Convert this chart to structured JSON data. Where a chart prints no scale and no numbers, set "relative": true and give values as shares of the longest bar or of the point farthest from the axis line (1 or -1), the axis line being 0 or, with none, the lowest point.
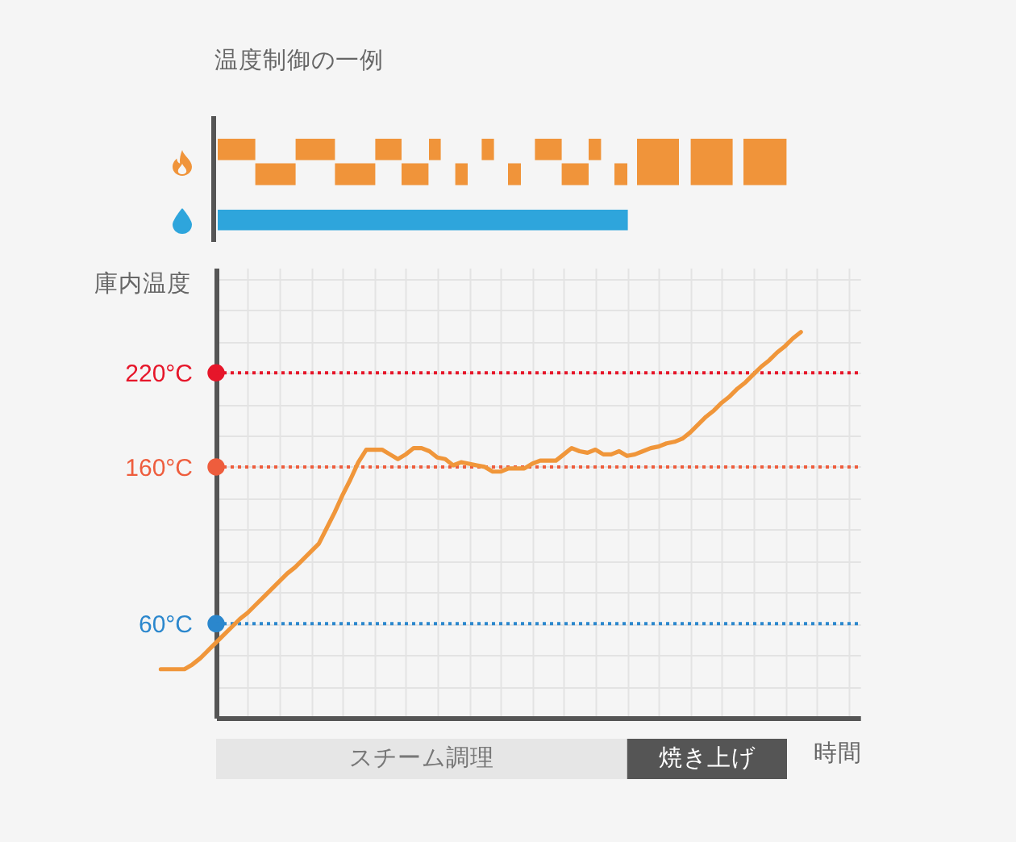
{
  "chart_data": [
    {
      "type": "other",
      "title": "温度制御の一例"
    },
    {
      "type": "line",
      "ylabel": "庫内温度",
      "xlabel": "時間",
      "categories": [
        null,
        null,
        null,
        null,
        null,
        null,
        null,
        null,
        null,
        null,
        null,
        null,
        null,
        null,
        null,
        null,
        null,
        null,
        null,
        null,
        null,
        null,
        null,
        null,
        null,
        null,
        null,
        null,
        null,
        null,
        null,
        null,
        null,
        null,
        null,
        null,
        null,
        null,
        null,
        null,
        null,
        null,
        null,
        null,
        null,
        null,
        null,
        null,
        null,
        null,
        null,
        null,
        null,
        null,
        null,
        null,
        null,
        null,
        null,
        null,
        null,
        null,
        null,
        null,
        null,
        null,
        null,
        null,
        null,
        null,
        null,
        null,
        null,
        null,
        null,
        null,
        null,
        null,
        null,
        null,
        null,
        null,
        null,
        null,
        null,
        null,
        null,
        null,
        null
      ],
      "series": [
        {
          "color": "#f0963a",
          "values": [
            31,
            31,
            31,
            31,
            34,
            38,
            43,
            48,
            53,
            58,
            63,
            67,
            72,
            77,
            82,
            87,
            92,
            96,
            101,
            106,
            111,
            121,
            131,
            142,
            152,
            163,
            171,
            171,
            171,
            168,
            165,
            168,
            172,
            172,
            170,
            166,
            165,
            161,
            163,
            162,
            161,
            160,
            157,
            157,
            159,
            159,
            159,
            162,
            164,
            164,
            164,
            168,
            172,
            170,
            169,
            171,
            168,
            168,
            170,
            167,
            168,
            170,
            172,
            173,
            175,
            176,
            178,
            182,
            187,
            192,
            196,
            201,
            205,
            210,
            214,
            219,
            224,
            228,
            233,
            237,
            242,
            246,
            null,
            null,
            null,
            null,
            null,
            null,
            null
          ]
        }
      ],
      "ylim": [
        0,
        287
      ],
      "yticks": [
        {
          "value": 20,
          "label": null
        },
        {
          "value": 40,
          "label": null
        },
        {
          "value": 60,
          "label": "60°C"
        },
        {
          "value": 80,
          "label": null
        },
        {
          "value": 100,
          "label": null
        },
        {
          "value": 120,
          "label": null
        },
        {
          "value": 140,
          "label": null
        },
        {
          "value": 160,
          "label": "160°C"
        },
        {
          "value": 180,
          "label": null
        },
        {
          "value": 200,
          "label": null
        },
        {
          "value": 220,
          "label": "220°C"
        },
        {
          "value": 240,
          "label": null
        },
        {
          "value": 260,
          "label": null
        },
        {
          "value": 280,
          "label": null
        }
      ],
      "grid": true,
      "tick_labels": "y",
      "ref_lines": [
        {
          "axis": "y",
          "value": 220,
          "color": "#e6162a",
          "line_style": "dotted"
        },
        {
          "axis": "y",
          "value": 160,
          "color": "#ee5d3d",
          "line_style": "dotted"
        },
        {
          "axis": "y",
          "value": 60,
          "color": "#2b87cd",
          "line_style": "dotted"
        }
      ]
    },
    {
      "type": "bar",
      "orientation": "horizontal",
      "relative": true,
      "stacked": true,
      "categories": [
        null
      ],
      "series": [
        {
          "name": "スチーム調理",
          "color": "#e6e6e6",
          "values": [
            0.72
          ]
        },
        {
          "name": "焼き上げ",
          "color": "#555555",
          "values": [
            0.28
          ]
        }
      ]
    }
  ]
}
